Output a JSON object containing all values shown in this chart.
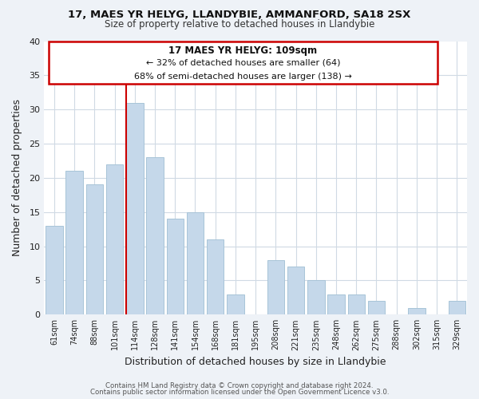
{
  "title1": "17, MAES YR HELYG, LLANDYBIE, AMMANFORD, SA18 2SX",
  "title2": "Size of property relative to detached houses in Llandybie",
  "xlabel": "Distribution of detached houses by size in Llandybie",
  "ylabel": "Number of detached properties",
  "categories": [
    "61sqm",
    "74sqm",
    "88sqm",
    "101sqm",
    "114sqm",
    "128sqm",
    "141sqm",
    "154sqm",
    "168sqm",
    "181sqm",
    "195sqm",
    "208sqm",
    "221sqm",
    "235sqm",
    "248sqm",
    "262sqm",
    "275sqm",
    "288sqm",
    "302sqm",
    "315sqm",
    "329sqm"
  ],
  "values": [
    13,
    21,
    19,
    22,
    31,
    23,
    14,
    15,
    11,
    3,
    0,
    8,
    7,
    5,
    3,
    3,
    2,
    0,
    1,
    0,
    2
  ],
  "bar_color": "#c5d8ea",
  "bar_edge_color": "#a8c4d8",
  "red_line_index": 4,
  "ylim": [
    0,
    40
  ],
  "yticks": [
    0,
    5,
    10,
    15,
    20,
    25,
    30,
    35,
    40
  ],
  "annotation_title": "17 MAES YR HELYG: 109sqm",
  "annotation_line1": "← 32% of detached houses are smaller (64)",
  "annotation_line2": "68% of semi-detached houses are larger (138) →",
  "annotation_box_color": "#ffffff",
  "annotation_box_edge": "#cc0000",
  "footer1": "Contains HM Land Registry data © Crown copyright and database right 2024.",
  "footer2": "Contains public sector information licensed under the Open Government Licence v3.0.",
  "background_color": "#eef2f7",
  "plot_bg_color": "#ffffff",
  "grid_color": "#d0dae4"
}
